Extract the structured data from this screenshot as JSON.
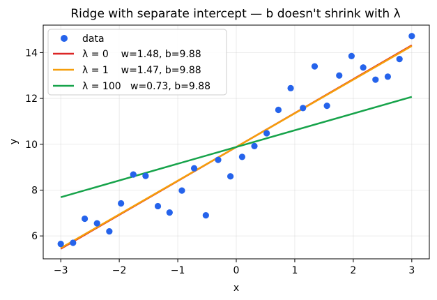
{
  "chart_data": {
    "type": "scatter",
    "title": "Ridge with separate intercept — b doesn't shrink with λ",
    "xlabel": "x",
    "ylabel": "y",
    "xlim": [
      -3.3,
      3.3
    ],
    "ylim": [
      5.0,
      15.2
    ],
    "xticks": [
      -3,
      -2,
      -1,
      0,
      1,
      2,
      3
    ],
    "yticks": [
      6,
      8,
      10,
      12,
      14
    ],
    "grid": true,
    "legend_position": "upper-left",
    "points": {
      "name": "data",
      "color": "#2563eb",
      "x": [
        -3.0,
        -2.79,
        -2.59,
        -2.38,
        -2.17,
        -1.97,
        -1.76,
        -1.55,
        -1.34,
        -1.14,
        -0.93,
        -0.72,
        -0.52,
        -0.31,
        -0.1,
        0.1,
        0.31,
        0.52,
        0.72,
        0.93,
        1.14,
        1.34,
        1.55,
        1.76,
        1.97,
        2.17,
        2.38,
        2.59,
        2.79,
        3.0
      ],
      "y": [
        5.65,
        5.7,
        6.75,
        6.55,
        6.2,
        7.42,
        8.68,
        8.62,
        7.3,
        7.02,
        7.98,
        8.95,
        6.9,
        9.32,
        8.6,
        9.45,
        9.92,
        10.48,
        11.5,
        12.45,
        11.58,
        13.4,
        11.68,
        13.0,
        13.85,
        13.35,
        12.82,
        12.95,
        13.72,
        14.72
      ]
    },
    "series": [
      {
        "name": "λ = 0    w=1.48, b=9.88",
        "w": 1.48,
        "b": 9.88,
        "color": "#dc2626"
      },
      {
        "name": "λ = 1    w=1.47, b=9.88",
        "w": 1.47,
        "b": 9.88,
        "color": "#f59e0b"
      },
      {
        "name": "λ = 100   w=0.73, b=9.88",
        "w": 0.73,
        "b": 9.88,
        "color": "#16a34a"
      }
    ],
    "line_x_range": [
      -3,
      3
    ]
  }
}
